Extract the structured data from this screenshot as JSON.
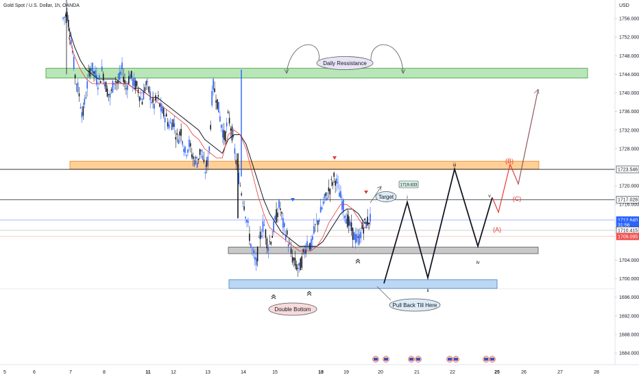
{
  "chart_data": {
    "type": "candlestick",
    "title": "Gold Spot / U.S. Dollar, 1h, OANDA",
    "currency_label": "USD",
    "y_ticks": [
      "1756.000",
      "1752.000",
      "1748.000",
      "1744.000",
      "1740.000",
      "1736.000",
      "1732.000",
      "1728.000",
      "1720.000",
      "1716.000",
      "1704.000",
      "1700.000",
      "1696.000",
      "1692.000",
      "1688.000",
      "1684.000"
    ],
    "x_ticks": [
      "5",
      "6",
      "7",
      "8",
      "11",
      "12",
      "13",
      "14",
      "15",
      "18",
      "19",
      "20",
      "21",
      "22",
      "25",
      "26",
      "27",
      "28"
    ],
    "ylim": [
      1681.5,
      1760
    ],
    "price_tags": [
      {
        "value": 1723.546,
        "label": "1723.546",
        "bg": "#ffffff",
        "fg": "#131722"
      },
      {
        "value": 1717.028,
        "label": "1717.028",
        "bg": "#ffffff",
        "fg": "#131722"
      },
      {
        "value": 1712.64,
        "label": "1712.640",
        "bg": "#2962ff",
        "fg": "#ffffff"
      },
      {
        "value": 1711.6,
        "label": "31:56",
        "bg": "#2962ff",
        "fg": "#ffffff"
      },
      {
        "value": 1710.415,
        "label": "1710.415",
        "bg": "#ffffff",
        "fg": "#131722"
      },
      {
        "value": 1709.095,
        "label": "1709.095",
        "bg": "#ef5350",
        "fg": "#ffffff"
      }
    ],
    "zones": [
      {
        "name": "Daily Ressistance",
        "from": 1743.2,
        "to": 1745.3,
        "color": "#b9e6b9",
        "stroke": "#3a9a3a"
      },
      {
        "name": "resistance-zone",
        "from": 1723.6,
        "to": 1725.3,
        "color": "#ffcf96",
        "stroke": "#e08a1e"
      },
      {
        "name": "support-zone",
        "from": 1705.4,
        "to": 1706.8,
        "color": "#c8c8c8",
        "stroke": "#555555"
      },
      {
        "name": "Pull Back Till Here",
        "from": 1697.9,
        "to": 1699.8,
        "color": "#bcd7f3",
        "stroke": "#3d7fc4"
      }
    ],
    "labels": {
      "daily_resistance": "Daily Ressistance",
      "double_bottom": "Double Bottom",
      "pull_back": "Pull Back Till Here",
      "target": "Target",
      "target_price": "1719.833",
      "wave_i": "i",
      "wave_ii": "ii",
      "wave_iii": "iii",
      "wave_iv": "iv",
      "wave_v": "v",
      "wave_A": "(A)",
      "wave_B": "(B)",
      "wave_C": "(C)"
    },
    "price_path": [
      1756,
      1757,
      1752,
      1744,
      1740,
      1735,
      1741,
      1746,
      1744,
      1742,
      1745,
      1741,
      1739,
      1743,
      1742,
      1745,
      1741,
      1744,
      1742,
      1741,
      1738,
      1742,
      1740,
      1737,
      1739,
      1736,
      1735,
      1733,
      1734,
      1730,
      1732,
      1727,
      1729,
      1726,
      1725,
      1728,
      1723,
      1726,
      1742,
      1739,
      1734,
      1730,
      1735,
      1731,
      1725,
      1720,
      1716,
      1711,
      1706,
      1703,
      1709,
      1712,
      1707,
      1709,
      1713,
      1716,
      1711,
      1709,
      1705,
      1703,
      1702,
      1705,
      1708,
      1707,
      1711,
      1713,
      1716,
      1718,
      1720,
      1722,
      1719,
      1716,
      1713,
      1711,
      1709,
      1708,
      1711,
      1712,
      1713
    ],
    "ema_fast": [
      1752,
      1748,
      1745,
      1743,
      1742,
      1742,
      1742,
      1742,
      1742,
      1742,
      1742,
      1741,
      1740,
      1740,
      1739,
      1738,
      1737,
      1736,
      1735,
      1734,
      1733,
      1731,
      1730,
      1728,
      1727,
      1726,
      1726,
      1731,
      1732,
      1731,
      1728,
      1723,
      1718,
      1714,
      1711,
      1710,
      1709,
      1708,
      1707,
      1706,
      1706,
      1706,
      1707,
      1709,
      1712,
      1714,
      1716,
      1716,
      1715,
      1713,
      1711,
      1711
    ],
    "ema_slow": [
      1754,
      1750,
      1747,
      1745,
      1744,
      1743,
      1743,
      1743,
      1743,
      1742,
      1742,
      1741,
      1741,
      1740,
      1739,
      1739,
      1738,
      1737,
      1736,
      1735,
      1734,
      1733,
      1732,
      1730,
      1729,
      1728,
      1727,
      1730,
      1731,
      1731,
      1729,
      1725,
      1721,
      1717,
      1714,
      1712,
      1710,
      1709,
      1708,
      1707,
      1707,
      1707,
      1707,
      1708,
      1710,
      1712,
      1714,
      1715,
      1715,
      1714,
      1712,
      1712
    ]
  }
}
